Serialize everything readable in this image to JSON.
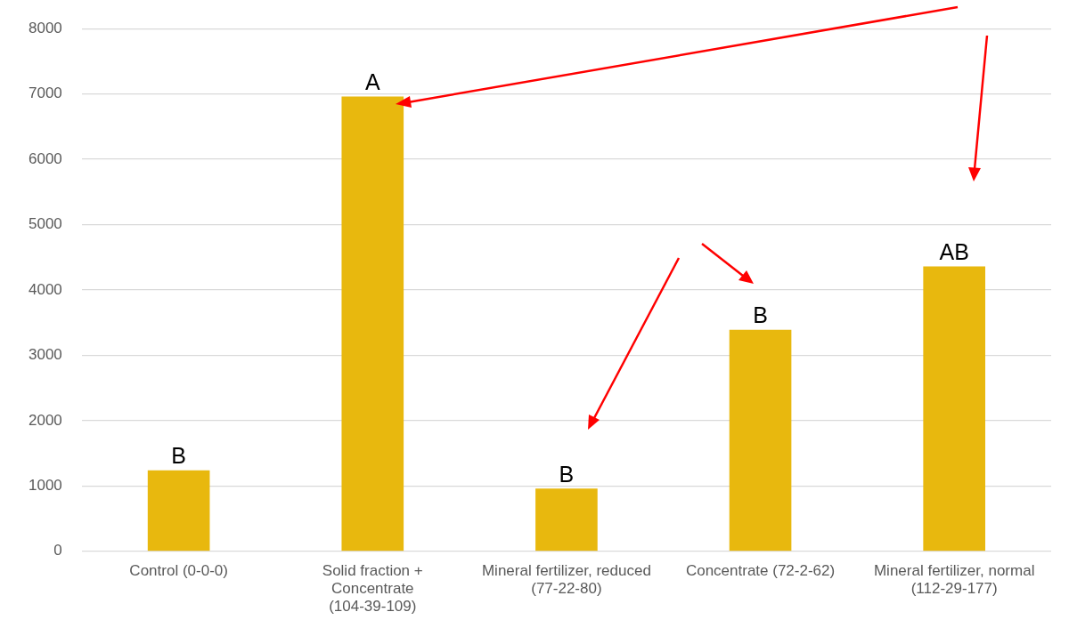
{
  "chart_data": {
    "type": "bar",
    "categories": [
      "Control (0-0-0)",
      "Solid fraction + Concentrate (104-39-109)",
      "Mineral fertilizer, reduced (77-22-80)",
      "Concentrate (72-2-62)",
      "Mineral fertilizer, normal (112-29-177)"
    ],
    "values": [
      1240,
      6960,
      960,
      3390,
      4360
    ],
    "color": "#e8b80e",
    "ylim": [
      0,
      8000
    ],
    "yticks": [
      0,
      1000,
      2000,
      3000,
      4000,
      5000,
      6000,
      7000,
      8000
    ],
    "grid": "y",
    "legend": false,
    "annotations": [
      {
        "text": "B",
        "x": "Control (0-0-0)",
        "y": 1240
      },
      {
        "text": "A",
        "x": "Solid fraction + Concentrate (104-39-109)",
        "y": 6960
      },
      {
        "text": "B",
        "x": "Mineral fertilizer, reduced (77-22-80)",
        "y": 960
      },
      {
        "text": "B",
        "x": "Concentrate (72-2-62)",
        "y": 3390
      },
      {
        "text": "AB",
        "x": "Mineral fertilizer, normal (112-29-177)",
        "y": 4360
      }
    ]
  }
}
